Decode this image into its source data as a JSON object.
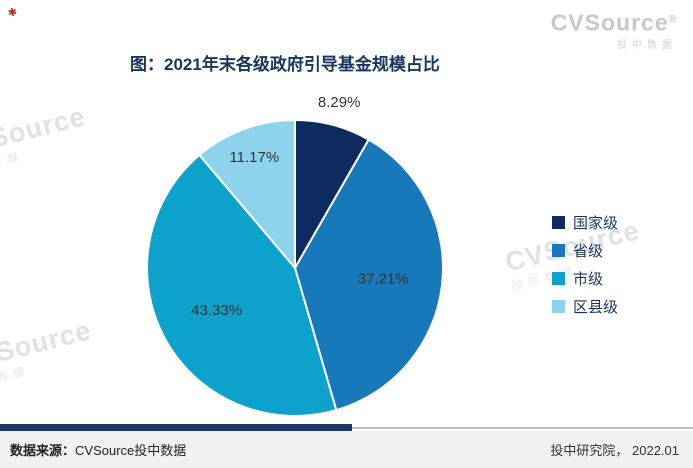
{
  "chart_data": {
    "type": "pie",
    "title": "图：2021年末各级政府引导基金规模占比",
    "categories": [
      "国家级",
      "省级",
      "市级",
      "区县级"
    ],
    "values": [
      8.29,
      37.21,
      43.33,
      11.17
    ],
    "labels": [
      "8.29%",
      "37.21%",
      "43.33%",
      "11.17%"
    ],
    "colors": [
      "#0d2b5e",
      "#1779b9",
      "#0da2cc",
      "#8ed3ec"
    ],
    "label_radius": [
      1.16,
      0.6,
      0.6,
      0.8
    ],
    "start_angle_deg": 0,
    "direction": "clockwise",
    "legend_position": "right",
    "label_color": "#333333"
  },
  "watermark": {
    "brand": "CVSource",
    "registered": "®",
    "sub": "投中数据"
  },
  "icons": {
    "red_mark": "✱"
  },
  "footer": {
    "source_label": "数据来源：",
    "source_value": "CVSource投中数据",
    "right": "投中研究院， 2022.01",
    "bar_color": "#1f3864"
  }
}
